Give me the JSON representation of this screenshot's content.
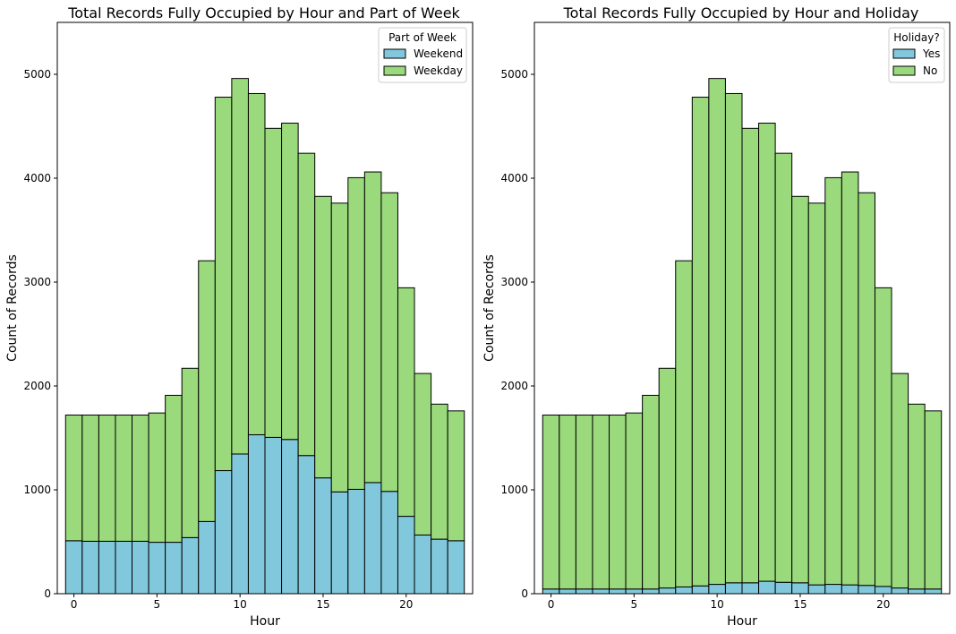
{
  "chart_data": [
    {
      "type": "bar",
      "stacked": true,
      "title": "Total Records Fully Occupied by Hour and Part of Week",
      "xlabel": "Hour",
      "ylabel": "Count of Records",
      "xlim": [
        -1.0,
        24.0
      ],
      "ylim": [
        0,
        5500
      ],
      "xticks": [
        0,
        5,
        10,
        15,
        20
      ],
      "yticks": [
        0,
        1000,
        2000,
        3000,
        4000,
        5000
      ],
      "categories": [
        0,
        1,
        2,
        3,
        4,
        5,
        6,
        7,
        8,
        9,
        10,
        11,
        12,
        13,
        14,
        15,
        16,
        17,
        18,
        19,
        20,
        21,
        22,
        23
      ],
      "legend_title": "Part of Week",
      "legend_position": "top-right",
      "grid": false,
      "series": [
        {
          "name": "Weekend",
          "color": "#82c8dc",
          "values": [
            510,
            505,
            505,
            505,
            505,
            495,
            495,
            540,
            695,
            1185,
            1345,
            1530,
            1505,
            1485,
            1330,
            1115,
            980,
            1005,
            1070,
            985,
            745,
            565,
            525,
            510
          ]
        },
        {
          "name": "Weekday",
          "color": "#9ad97c",
          "values": [
            1210,
            1215,
            1215,
            1215,
            1215,
            1245,
            1415,
            1630,
            2510,
            3595,
            3615,
            3285,
            2975,
            3045,
            2910,
            2710,
            2780,
            3000,
            2990,
            2875,
            2200,
            1555,
            1300,
            1250
          ]
        }
      ]
    },
    {
      "type": "bar",
      "stacked": true,
      "title": "Total Records Fully Occupied by Hour and Holiday",
      "xlabel": "Hour",
      "ylabel": "Count of Records",
      "xlim": [
        -1.0,
        24.0
      ],
      "ylim": [
        0,
        5500
      ],
      "xticks": [
        0,
        5,
        10,
        15,
        20
      ],
      "yticks": [
        0,
        1000,
        2000,
        3000,
        4000,
        5000
      ],
      "categories": [
        0,
        1,
        2,
        3,
        4,
        5,
        6,
        7,
        8,
        9,
        10,
        11,
        12,
        13,
        14,
        15,
        16,
        17,
        18,
        19,
        20,
        21,
        22,
        23
      ],
      "legend_title": "Holiday?",
      "legend_position": "top-right",
      "grid": false,
      "series": [
        {
          "name": "Yes",
          "color": "#82c8dc",
          "values": [
            45,
            45,
            45,
            45,
            45,
            45,
            45,
            55,
            65,
            75,
            90,
            105,
            105,
            120,
            110,
            105,
            85,
            90,
            85,
            80,
            70,
            55,
            45,
            45
          ]
        },
        {
          "name": "No",
          "color": "#9ad97c",
          "values": [
            1675,
            1675,
            1675,
            1675,
            1675,
            1695,
            1865,
            2115,
            3140,
            4705,
            4870,
            4710,
            4375,
            4410,
            4130,
            3720,
            3675,
            3915,
            3975,
            3780,
            2875,
            2065,
            1780,
            1715
          ]
        }
      ]
    }
  ]
}
